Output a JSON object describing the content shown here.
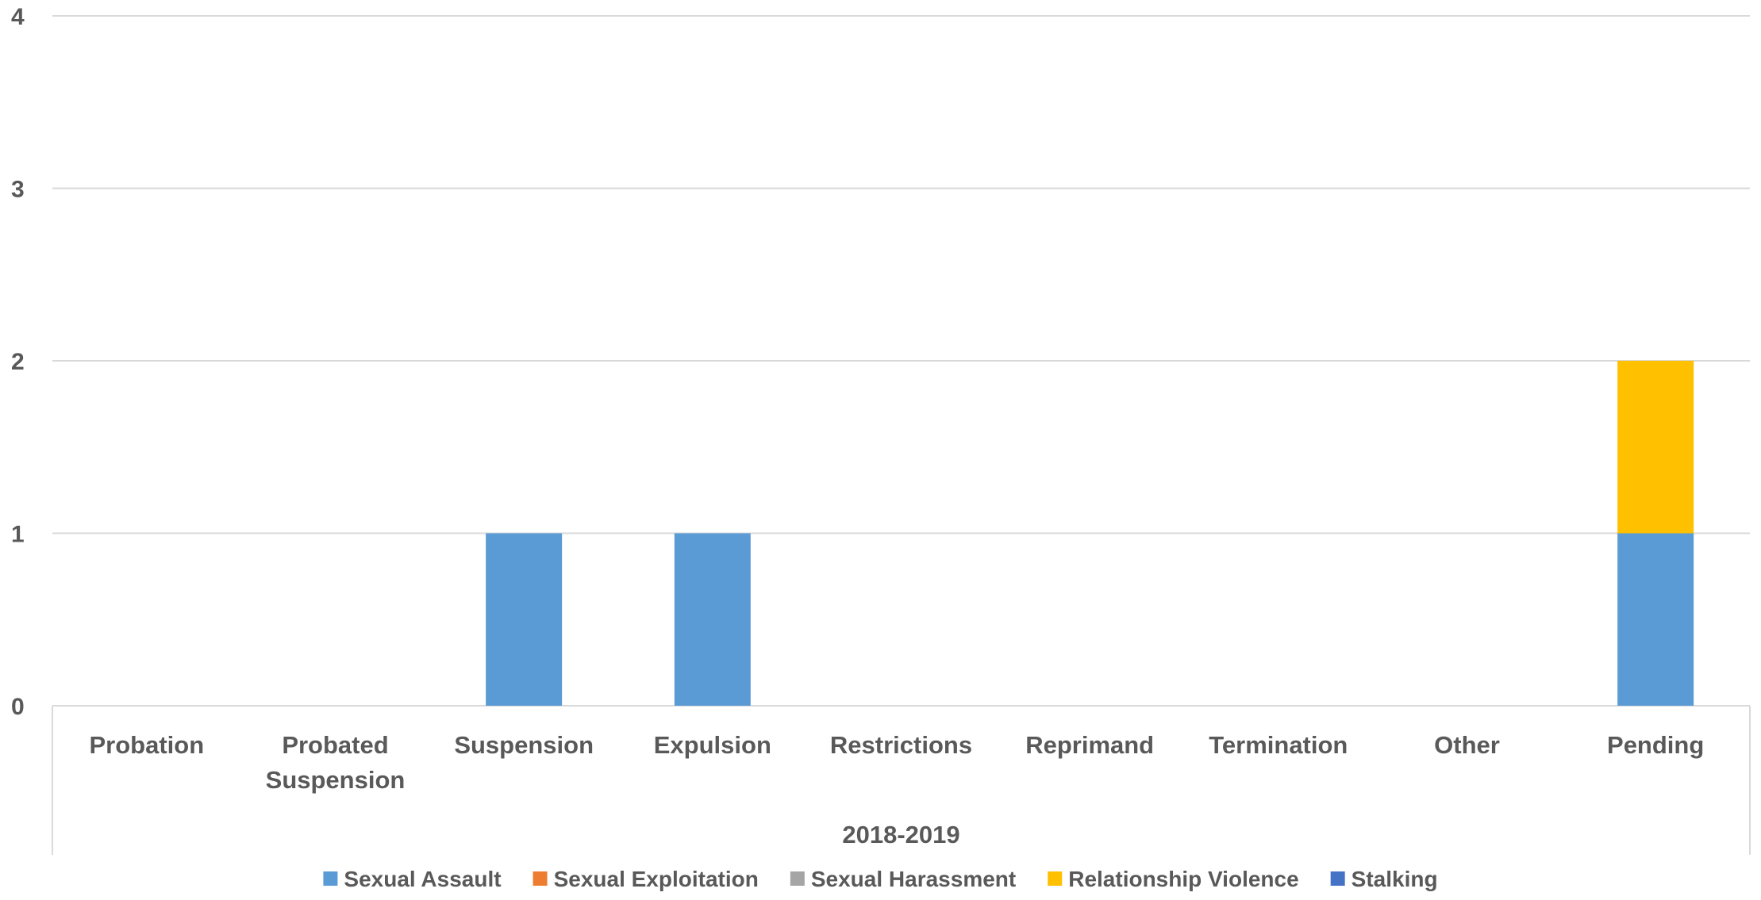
{
  "chart_data": {
    "type": "bar",
    "stacked": true,
    "group_label": "2018-2019",
    "categories": [
      [
        "Probation"
      ],
      [
        "Probated",
        "Suspension"
      ],
      [
        "Suspension"
      ],
      [
        "Expulsion"
      ],
      [
        "Restrictions"
      ],
      [
        "Reprimand"
      ],
      [
        "Termination"
      ],
      [
        "Other"
      ],
      [
        "Pending"
      ]
    ],
    "yticks": [
      "0",
      "1",
      "2",
      "3",
      "4"
    ],
    "ylim": [
      0,
      4
    ],
    "grid": true,
    "legend_position": "bottom",
    "series": [
      {
        "name": "Sexual Assault",
        "color": "#5B9BD5",
        "values": [
          0,
          0,
          1,
          1,
          0,
          0,
          0,
          0,
          1
        ]
      },
      {
        "name": "Sexual Exploitation",
        "color": "#ED7D31",
        "values": [
          0,
          0,
          0,
          0,
          0,
          0,
          0,
          0,
          0
        ]
      },
      {
        "name": "Sexual Harassment",
        "color": "#A5A5A5",
        "values": [
          0,
          0,
          0,
          0,
          0,
          0,
          0,
          0,
          0
        ]
      },
      {
        "name": "Relationship Violence",
        "color": "#FFC000",
        "values": [
          0,
          0,
          0,
          0,
          0,
          0,
          0,
          0,
          1
        ]
      },
      {
        "name": "Stalking",
        "color": "#4472C4",
        "values": [
          0,
          0,
          0,
          0,
          0,
          0,
          0,
          0,
          0
        ]
      }
    ]
  }
}
